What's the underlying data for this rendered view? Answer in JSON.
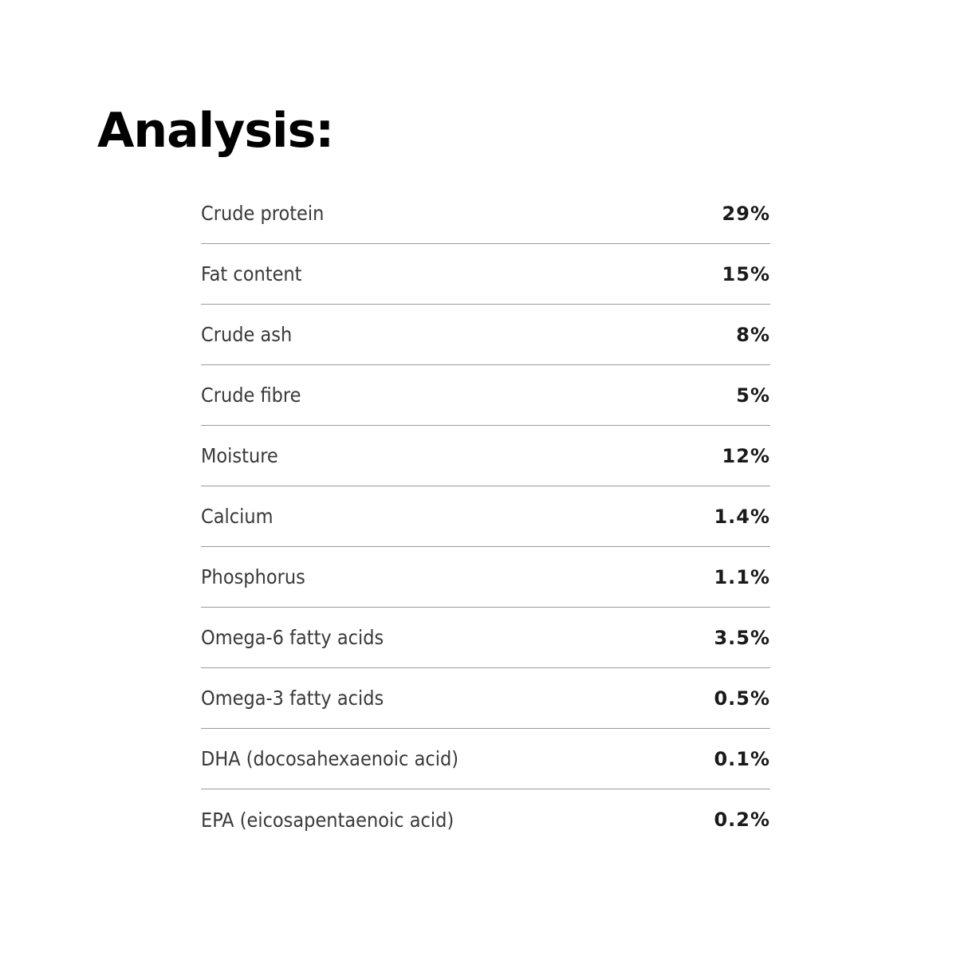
{
  "title": "Analysis:",
  "rows": [
    {
      "label": "Crude protein",
      "value": "29%"
    },
    {
      "label": "Fat content",
      "value": "15%"
    },
    {
      "label": "Crude ash",
      "value": "8%"
    },
    {
      "label": "Crude fibre",
      "value": "5%"
    },
    {
      "label": "Moisture",
      "value": "12%"
    },
    {
      "label": "Calcium",
      "value": "1.4%"
    },
    {
      "label": "Phosphorus",
      "value": "1.1%"
    },
    {
      "label": "Omega-6 fatty acids",
      "value": "3.5%"
    },
    {
      "label": "Omega-3 fatty acids",
      "value": "0.5%"
    },
    {
      "label": "DHA (docosahexaenoic acid)",
      "value": "0.1%"
    },
    {
      "label": "EPA (eicosapentaenoic acid)",
      "value": "0.2%"
    }
  ]
}
